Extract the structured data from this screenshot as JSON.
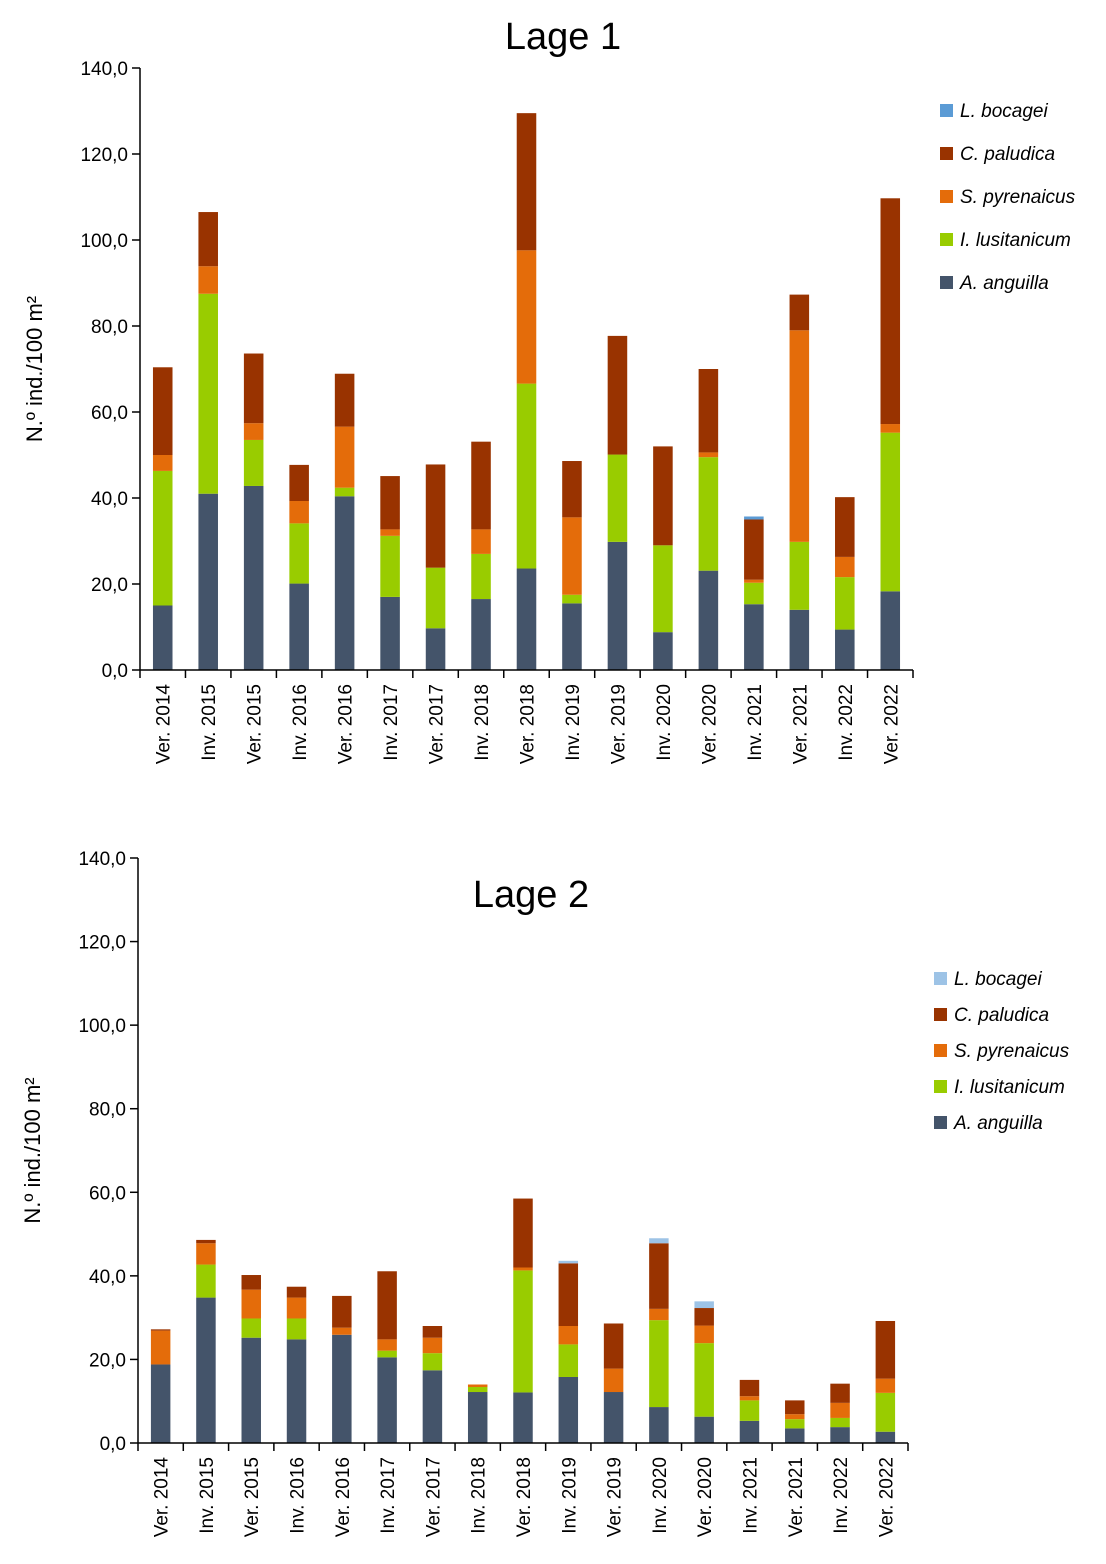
{
  "chart_data": [
    {
      "type": "bar",
      "stacked": true,
      "title": "Lage 1",
      "xlabel": "",
      "ylabel": "N.º ind./100 m²",
      "ylim": [
        0,
        140
      ],
      "yticks": [
        "0,0",
        "20,0",
        "40,0",
        "60,0",
        "80,0",
        "100,0",
        "120,0",
        "140,0"
      ],
      "grid": false,
      "legend": "right-top",
      "categories": [
        "Ver. 2014",
        "Inv. 2015",
        "Ver. 2015",
        "Inv. 2016",
        "Ver. 2016",
        "Inv. 2017",
        "Ver. 2017",
        "Inv. 2018",
        "Ver. 2018",
        "Inv. 2019",
        "Ver. 2019",
        "Inv. 2020",
        "Ver. 2020",
        "Inv. 2021",
        "Ver. 2021",
        "Inv. 2022",
        "Ver. 2022"
      ],
      "series": [
        {
          "name": "A. anguilla",
          "color": "#44546a",
          "values": [
            15.0,
            41.0,
            42.8,
            20.1,
            40.4,
            17.0,
            9.7,
            16.5,
            23.6,
            15.5,
            29.8,
            8.8,
            23.1,
            15.3,
            14.0,
            9.4,
            18.3
          ]
        },
        {
          "name": "I. lusitanicum",
          "color": "#99cc00",
          "values": [
            31.3,
            46.5,
            10.7,
            14.0,
            2.0,
            14.2,
            14.1,
            10.5,
            43.0,
            2.0,
            20.3,
            20.2,
            26.4,
            5.0,
            15.8,
            12.2,
            36.9
          ]
        },
        {
          "name": "S. pyrenaicus",
          "color": "#e46c0a",
          "values": [
            3.7,
            6.4,
            3.9,
            5.2,
            14.2,
            1.5,
            0.0,
            5.7,
            31.0,
            18.0,
            0.0,
            0.0,
            1.1,
            0.7,
            49.2,
            4.7,
            2.0
          ]
        },
        {
          "name": "C. paludica",
          "color": "#993300",
          "values": [
            20.4,
            12.6,
            16.2,
            8.4,
            12.3,
            12.4,
            24.0,
            20.4,
            31.9,
            13.1,
            27.6,
            23.0,
            19.4,
            14.0,
            8.3,
            13.9,
            52.5
          ]
        },
        {
          "name": "L. bocagei",
          "color": "#5b9bd5",
          "values": [
            0,
            0,
            0,
            0,
            0,
            0,
            0,
            0,
            0,
            0,
            0,
            0,
            0,
            0.7,
            0,
            0,
            0
          ]
        }
      ]
    },
    {
      "type": "bar",
      "stacked": true,
      "title": "Lage 2",
      "xlabel": "",
      "ylabel": "N.º ind./100 m²",
      "ylim": [
        0,
        140
      ],
      "yticks": [
        "0,0",
        "20,0",
        "40,0",
        "60,0",
        "80,0",
        "100,0",
        "120,0",
        "140,0"
      ],
      "grid": false,
      "legend": "right",
      "categories": [
        "Ver. 2014",
        "Inv. 2015",
        "Ver. 2015",
        "Inv. 2016",
        "Ver. 2016",
        "Inv. 2017",
        "Ver. 2017",
        "Inv. 2018",
        "Ver. 2018",
        "Inv. 2019",
        "Ver. 2019",
        "Inv. 2020",
        "Ver. 2020",
        "Inv. 2021",
        "Ver. 2021",
        "Inv. 2022",
        "Ver. 2022"
      ],
      "series": [
        {
          "name": "A. anguilla",
          "color": "#44546a",
          "values": [
            18.8,
            34.8,
            25.2,
            24.8,
            25.9,
            20.5,
            17.4,
            12.2,
            12.1,
            15.8,
            12.2,
            8.6,
            6.3,
            5.3,
            3.5,
            3.8,
            2.7
          ]
        },
        {
          "name": "I. lusitanicum",
          "color": "#99cc00",
          "values": [
            0.0,
            7.9,
            4.6,
            5.0,
            0.0,
            1.6,
            4.1,
            1.2,
            29.2,
            7.8,
            0.0,
            20.8,
            17.6,
            4.9,
            2.2,
            2.2,
            9.3
          ]
        },
        {
          "name": "S. pyrenaicus",
          "color": "#e46c0a",
          "values": [
            8.1,
            5.1,
            6.9,
            5.0,
            1.7,
            2.7,
            3.7,
            0.6,
            0.7,
            4.4,
            5.6,
            2.7,
            4.2,
            1.0,
            1.2,
            3.6,
            3.4
          ]
        },
        {
          "name": "C. paludica",
          "color": "#993300",
          "values": [
            0.3,
            0.8,
            3.5,
            2.6,
            7.6,
            16.3,
            2.8,
            0.0,
            16.5,
            15.0,
            10.8,
            15.7,
            4.2,
            3.9,
            3.3,
            4.6,
            13.8
          ]
        },
        {
          "name": "L. bocagei",
          "color": "#9dc3e6",
          "values": [
            0,
            0,
            0,
            0,
            0,
            0,
            0,
            0,
            0,
            0.6,
            0,
            1.2,
            1.6,
            0,
            0,
            0,
            0
          ]
        }
      ]
    }
  ]
}
